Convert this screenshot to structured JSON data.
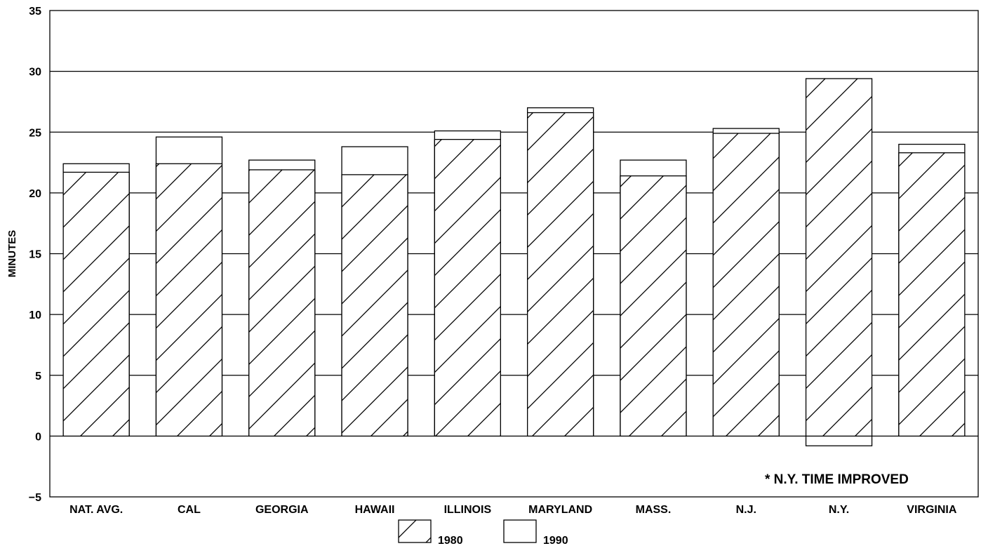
{
  "chart_data": {
    "type": "bar",
    "ylabel": "MINUTES",
    "xlabel": "",
    "ylim": [
      -5,
      35
    ],
    "yticks": [
      -5,
      0,
      5,
      10,
      15,
      20,
      25,
      30,
      35
    ],
    "grid": true,
    "legend_position": "bottom-center",
    "categories": [
      "NAT. AVG.",
      "CAL",
      "GEORGIA",
      "HAWAII",
      "ILLINOIS",
      "MARYLAND",
      "MASS.",
      "N.J.",
      "N.Y.",
      "VIRGINIA"
    ],
    "series": [
      {
        "name": "1980",
        "pattern": "hatched",
        "values": [
          21.7,
          22.4,
          21.9,
          21.5,
          24.4,
          26.6,
          21.4,
          24.9,
          29.4,
          23.3
        ]
      },
      {
        "name": "1990",
        "pattern": "plain",
        "values": [
          22.4,
          24.6,
          22.7,
          23.8,
          25.1,
          27.0,
          22.7,
          25.3,
          -0.8,
          24.0
        ]
      }
    ],
    "annotation": "* N.Y. TIME IMPROVED",
    "colors": {
      "stroke": "#000000",
      "background": "#ffffff"
    }
  }
}
